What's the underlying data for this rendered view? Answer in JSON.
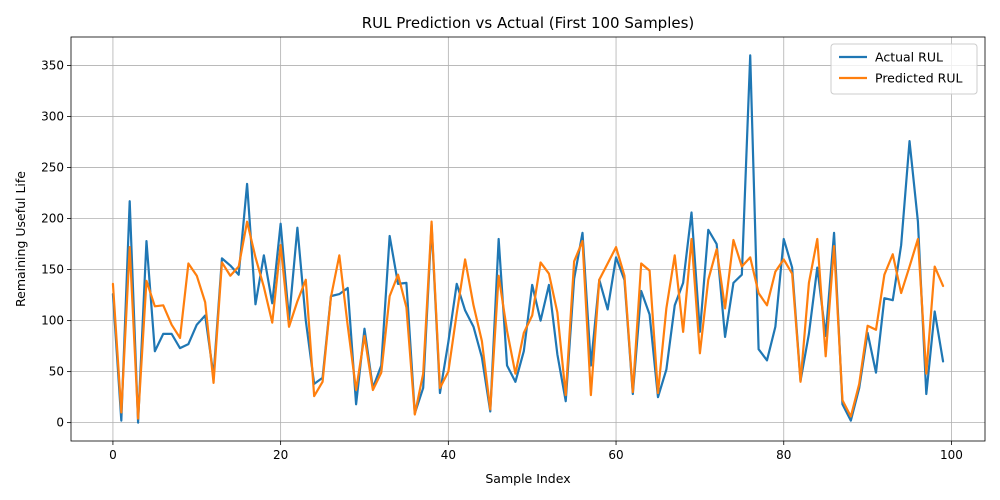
{
  "chart_data": {
    "type": "line",
    "title": "RUL Prediction vs Actual (First 100 Samples)",
    "xlabel": "Sample Index",
    "ylabel": "Remaining Useful Life",
    "xlim": [
      -5,
      104
    ],
    "ylim": [
      -18,
      378
    ],
    "xticks": [
      0,
      20,
      40,
      60,
      80,
      100
    ],
    "yticks": [
      0,
      50,
      100,
      150,
      200,
      250,
      300,
      350
    ],
    "grid": true,
    "legend_position": "top-right",
    "series": [
      {
        "name": "Actual RUL",
        "color": "#1f77b4",
        "values": [
          126,
          2,
          217,
          0,
          178,
          70,
          87,
          87,
          73,
          77,
          96,
          105,
          46,
          161,
          154,
          145,
          234,
          116,
          164,
          117,
          195,
          101,
          191,
          100,
          38,
          44,
          124,
          126,
          132,
          18,
          92,
          34,
          56,
          183,
          136,
          137,
          9,
          34,
          194,
          29,
          79,
          136,
          110,
          94,
          64,
          11,
          180,
          56,
          40,
          70,
          135,
          100,
          135,
          67,
          21,
          141,
          186,
          56,
          140,
          111,
          162,
          140,
          28,
          129,
          106,
          25,
          52,
          115,
          137,
          206,
          89,
          189,
          175,
          84,
          137,
          145,
          360,
          72,
          61,
          94,
          180,
          152,
          41,
          87,
          152,
          85,
          186,
          18,
          2,
          34,
          88,
          49,
          122,
          120,
          174,
          276,
          197,
          28,
          109,
          60
        ]
      },
      {
        "name": "Predicted RUL",
        "color": "#ff7f0e",
        "values": [
          136,
          10,
          172,
          4,
          139,
          114,
          115,
          96,
          83,
          156,
          144,
          118,
          39,
          157,
          144,
          153,
          197,
          162,
          133,
          98,
          174,
          94,
          119,
          140,
          26,
          40,
          123,
          164,
          95,
          32,
          85,
          32,
          49,
          124,
          145,
          113,
          8,
          48,
          197,
          34,
          50,
          107,
          160,
          115,
          80,
          13,
          144,
          90,
          48,
          88,
          105,
          157,
          146,
          108,
          27,
          158,
          178,
          27,
          140,
          156,
          172,
          144,
          30,
          156,
          149,
          29,
          112,
          164,
          89,
          180,
          68,
          140,
          170,
          112,
          179,
          153,
          162,
          127,
          115,
          148,
          160,
          146,
          40,
          137,
          180,
          65,
          173,
          22,
          6,
          38,
          95,
          91,
          145,
          165,
          127,
          153,
          180,
          48,
          153,
          134
        ]
      }
    ]
  }
}
